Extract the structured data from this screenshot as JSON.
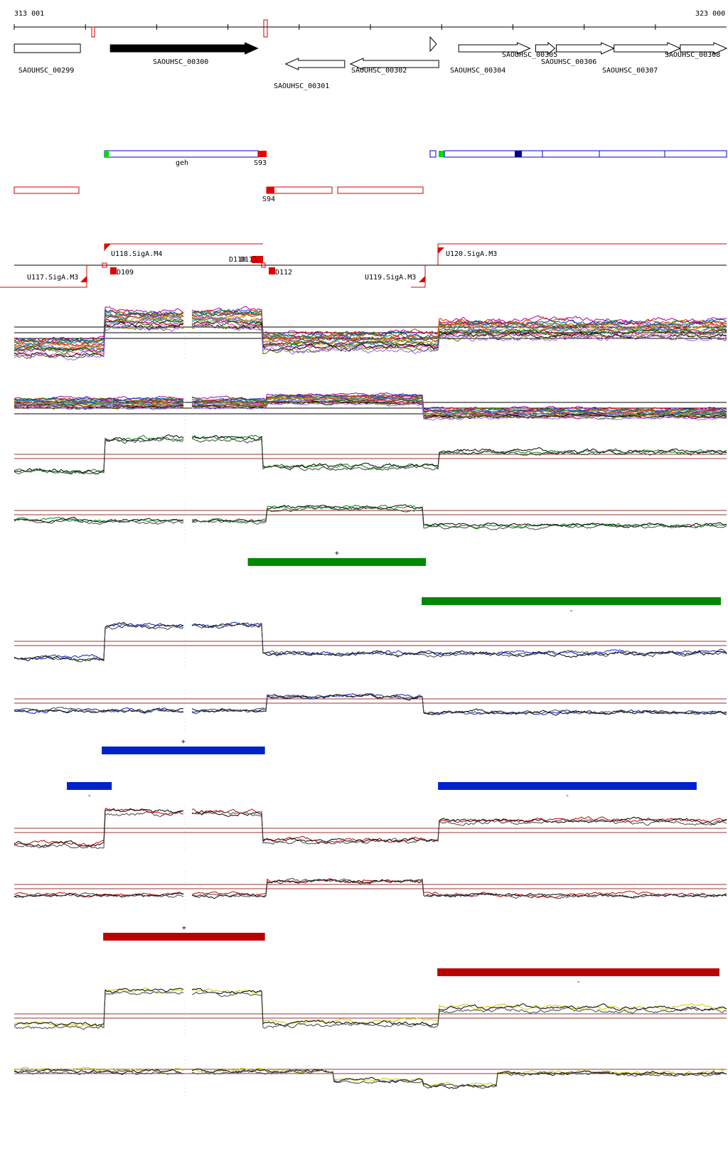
{
  "ruler": {
    "start_label": "313 001",
    "end_label": "323 000",
    "start": 313001,
    "end": 323000
  },
  "genes": [
    {
      "id": "SAOUHSC_00299",
      "start": 313002,
      "end": 313930,
      "strand": "none",
      "filled": false
    },
    {
      "id": "SAOUHSC_00300",
      "start": 314350,
      "end": 316420,
      "strand": "+",
      "filled": true
    },
    {
      "id": "SAOUHSC_00301",
      "start": 316810,
      "end": 317640,
      "strand": "-",
      "filled": false
    },
    {
      "id": "SAOUHSC_00302",
      "start": 317720,
      "end": 318960,
      "strand": "-",
      "filled": false
    },
    {
      "id": "SAOUHSC_00304",
      "start": 319240,
      "end": 320240,
      "strand": "+",
      "filled": false
    },
    {
      "id": "SAOUHSC_00305",
      "start": 320320,
      "end": 320590,
      "strand": "+",
      "filled": false
    },
    {
      "id": "SAOUHSC_00306",
      "start": 320610,
      "end": 321420,
      "strand": "+",
      "filled": false
    },
    {
      "id": "SAOUHSC_00307",
      "start": 321420,
      "end": 322350,
      "strand": "+",
      "filled": false
    },
    {
      "id": "SAOUHSC_00308",
      "start": 322350,
      "end": 323000,
      "strand": "+",
      "filled": false
    }
  ],
  "blue_features": [
    {
      "label": "geh",
      "start": 314250,
      "end": 316250
    },
    {
      "label": "S93",
      "start": 316250,
      "end": 316350
    }
  ],
  "red_features": [
    {
      "label": "",
      "start": 313001,
      "end": 313920
    },
    {
      "label": "S94",
      "start": 316350,
      "end": 317550
    },
    {
      "label": "",
      "start": 317600,
      "end": 318800
    }
  ],
  "promoters": [
    {
      "label": "U117.SigA.M3"
    },
    {
      "label": "U118.SigA.M4"
    },
    {
      "label": "U119.SigA.M3"
    },
    {
      "label": "U120.SigA.M3"
    }
  ],
  "downshifts": [
    {
      "label": "D109"
    },
    {
      "label": "D110"
    },
    {
      "label": "D111"
    },
    {
      "label": "D112"
    }
  ],
  "colors": {
    "green": "#008800",
    "blue": "#0022cc",
    "red": "#bb0000",
    "yellow": "#cccc00",
    "gene_fill": "#000000",
    "promoter": "#dd0000"
  },
  "segments": {
    "green": [
      {
        "sign": "+",
        "start": 316280,
        "end": 318780
      },
      {
        "sign": "-",
        "start": 318720,
        "end": 322920
      }
    ],
    "blue": [
      {
        "sign": "+",
        "start": 314230,
        "end": 316520
      },
      {
        "sign": "-",
        "start": 313740,
        "end": 314370
      },
      {
        "sign": "-",
        "start": 318950,
        "end": 322580
      }
    ],
    "red": [
      {
        "sign": "+",
        "start": 314250,
        "end": 316520
      },
      {
        "sign": "-",
        "start": 318940,
        "end": 322900
      }
    ]
  }
}
